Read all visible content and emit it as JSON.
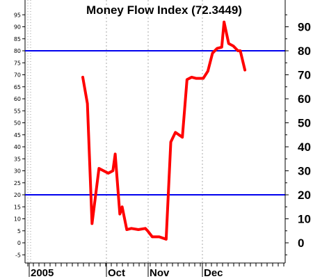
{
  "chart_data": {
    "type": "line",
    "title": "Money Flow Index (72.3449)",
    "xlabel": "",
    "ylabel": "",
    "ylim": [
      -7,
      101
    ],
    "grid": "vertical dotted at month boundaries",
    "left_ticks": [
      -5,
      0,
      5,
      10,
      15,
      20,
      25,
      30,
      35,
      40,
      45,
      50,
      55,
      60,
      65,
      70,
      75,
      80,
      85,
      90,
      95
    ],
    "right_ticks": [
      0,
      10,
      20,
      30,
      40,
      50,
      60,
      70,
      80,
      90
    ],
    "x_axis_labels": [
      "2005",
      "Oct",
      "Nov",
      "Dec"
    ],
    "reference_lines": [
      {
        "value": 80,
        "color": "#0000ee"
      },
      {
        "value": 20,
        "color": "#0000ee"
      }
    ],
    "series": [
      {
        "color": "#ff0000",
        "points": [
          {
            "day": 0,
            "value": 69
          },
          {
            "day": 2,
            "value": 58
          },
          {
            "day": 4,
            "value": 8
          },
          {
            "day": 7,
            "value": 31
          },
          {
            "day": 9,
            "value": 30
          },
          {
            "day": 11,
            "value": 29
          },
          {
            "day": 13,
            "value": 30
          },
          {
            "day": 14,
            "value": 37
          },
          {
            "day": 16,
            "value": 12
          },
          {
            "day": 17,
            "value": 15
          },
          {
            "day": 19,
            "value": 5.5
          },
          {
            "day": 21,
            "value": 6
          },
          {
            "day": 24,
            "value": 5.5
          },
          {
            "day": 27,
            "value": 6
          },
          {
            "day": 28,
            "value": 5
          },
          {
            "day": 30,
            "value": 2.5
          },
          {
            "day": 33,
            "value": 2.5
          },
          {
            "day": 36,
            "value": 1.5
          },
          {
            "day": 38,
            "value": 42
          },
          {
            "day": 40,
            "value": 46
          },
          {
            "day": 43,
            "value": 44
          },
          {
            "day": 45,
            "value": 68
          },
          {
            "day": 47,
            "value": 69
          },
          {
            "day": 49,
            "value": 68.5
          },
          {
            "day": 52,
            "value": 68.5
          },
          {
            "day": 54,
            "value": 71.5
          },
          {
            "day": 56,
            "value": 79
          },
          {
            "day": 58,
            "value": 81
          },
          {
            "day": 60,
            "value": 81.5
          },
          {
            "day": 61,
            "value": 92
          },
          {
            "day": 63,
            "value": 83
          },
          {
            "day": 65,
            "value": 82
          },
          {
            "day": 67,
            "value": 80
          },
          {
            "day": 68,
            "value": 80
          },
          {
            "day": 70,
            "value": 72
          }
        ]
      }
    ]
  }
}
